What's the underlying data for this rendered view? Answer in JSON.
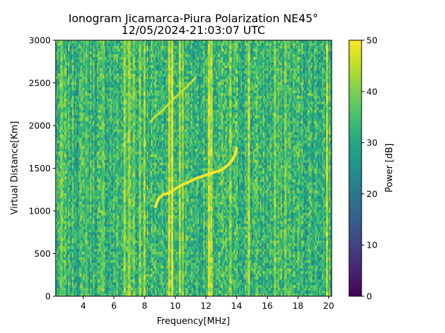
{
  "chart_data": {
    "type": "heatmap",
    "title": "Ionogram Jicamarca-Piura Polarization NE45°",
    "subtitle": "12/05/2024-21:03:07 UTC",
    "xlabel": "Frequency[MHz]",
    "ylabel": "Virtual Distance[Km]",
    "xlim": [
      2.2,
      20.2
    ],
    "ylim": [
      0,
      3000
    ],
    "x_ticks": [
      4,
      6,
      8,
      10,
      12,
      14,
      16,
      18,
      20
    ],
    "y_ticks": [
      0,
      500,
      1000,
      1500,
      2000,
      2500,
      3000
    ],
    "colorbar": {
      "label": "Power [dB]",
      "range": [
        0,
        50
      ],
      "ticks": [
        0,
        10,
        20,
        30,
        40,
        50
      ],
      "colormap": "viridis"
    },
    "background_power_dB": 33,
    "bright_frequency_bands_MHz": [
      {
        "f": 2.6,
        "power": 40
      },
      {
        "f": 4.2,
        "power": 38
      },
      {
        "f": 5.3,
        "power": 38
      },
      {
        "f": 6.7,
        "power": 44
      },
      {
        "f": 7.0,
        "power": 44
      },
      {
        "f": 7.3,
        "power": 40
      },
      {
        "f": 7.7,
        "power": 42
      },
      {
        "f": 8.0,
        "power": 44
      },
      {
        "f": 9.6,
        "power": 48
      },
      {
        "f": 9.8,
        "power": 50
      },
      {
        "f": 10.3,
        "power": 44
      },
      {
        "f": 10.5,
        "power": 42
      },
      {
        "f": 12.2,
        "power": 47
      },
      {
        "f": 12.35,
        "power": 45
      },
      {
        "f": 13.6,
        "power": 42
      },
      {
        "f": 14.8,
        "power": 46
      },
      {
        "f": 16.5,
        "power": 42
      },
      {
        "f": 17.2,
        "power": 40
      },
      {
        "f": 19.9,
        "power": 45
      }
    ],
    "traces": [
      {
        "name": "",
        "points": [
          [
            8.7,
            1050
          ],
          [
            8.9,
            1140
          ],
          [
            9.2,
            1190
          ],
          [
            9.6,
            1210
          ],
          [
            10.0,
            1260
          ],
          [
            10.5,
            1310
          ],
          [
            11.0,
            1350
          ],
          [
            11.5,
            1390
          ],
          [
            12.0,
            1420
          ],
          [
            12.5,
            1450
          ],
          [
            13.0,
            1480
          ],
          [
            13.4,
            1530
          ],
          [
            13.7,
            1590
          ],
          [
            13.9,
            1660
          ],
          [
            14.0,
            1730
          ]
        ],
        "power": 50
      },
      {
        "name": "",
        "points": [
          [
            8.4,
            2050
          ],
          [
            8.7,
            2110
          ],
          [
            9.0,
            2150
          ],
          [
            9.3,
            2200
          ],
          [
            9.7,
            2280
          ],
          [
            10.0,
            2330
          ],
          [
            10.4,
            2400
          ],
          [
            10.8,
            2460
          ],
          [
            11.3,
            2560
          ]
        ],
        "power": 46
      }
    ]
  }
}
